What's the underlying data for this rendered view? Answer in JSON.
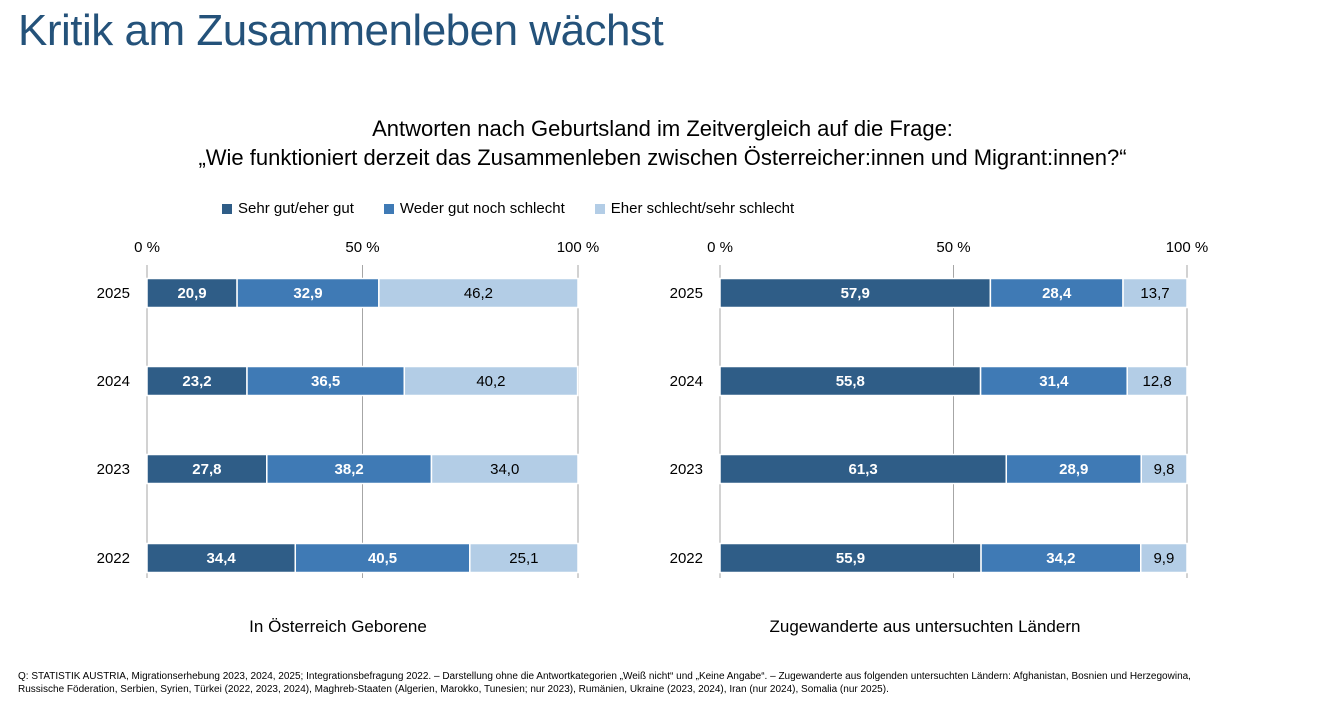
{
  "title": "Kritik am Zusammenleben wächst",
  "subtitle": {
    "line1": "Antworten nach Geburtsland im Zeitvergleich auf die Frage:",
    "line2": "„Wie funktioniert derzeit das Zusammenleben zwischen Österreicher:innen und Migrant:innen?“"
  },
  "legend": [
    {
      "label": "Sehr gut/eher gut",
      "color": "#2f5d87"
    },
    {
      "label": "Weder gut noch schlecht",
      "color": "#3f7ab5"
    },
    {
      "label": "Eher schlecht/sehr schlecht",
      "color": "#b3cde6"
    }
  ],
  "chart_data": [
    {
      "type": "bar",
      "orientation": "horizontal-stacked",
      "title": "In Österreich Geboren",
      "xlabel": "In Österreich Geborene",
      "ylabel": "",
      "xlim": [
        0,
        100
      ],
      "x_ticks": [
        "0 %",
        "50 %",
        "100 %"
      ],
      "grid": true,
      "categories": [
        "2025",
        "2024",
        "2023",
        "2022"
      ],
      "series": [
        {
          "name": "Sehr gut/eher gut",
          "values": [
            20.9,
            23.2,
            27.8,
            34.4
          ],
          "labels": [
            "20,9",
            "23,2",
            "27,8",
            "34,4"
          ]
        },
        {
          "name": "Weder gut noch schlecht",
          "values": [
            32.9,
            36.5,
            38.2,
            40.5
          ],
          "labels": [
            "32,9",
            "36,5",
            "38,2",
            "40,5"
          ]
        },
        {
          "name": "Eher schlecht/sehr schlecht",
          "values": [
            46.2,
            40.2,
            34.0,
            25.1
          ],
          "labels": [
            "46,2",
            "40,2",
            "34,0",
            "25,1"
          ]
        }
      ],
      "legend": "top"
    },
    {
      "type": "bar",
      "orientation": "horizontal-stacked",
      "title": "Zugewanderte aus untersuchten Ländern",
      "xlabel": "Zugewanderte aus untersuchten Ländern",
      "ylabel": "",
      "xlim": [
        0,
        100
      ],
      "x_ticks": [
        "0 %",
        "50 %",
        "100 %"
      ],
      "grid": true,
      "categories": [
        "2025",
        "2024",
        "2023",
        "2022"
      ],
      "series": [
        {
          "name": "Sehr gut/eher gut",
          "values": [
            57.9,
            55.8,
            61.3,
            55.9
          ],
          "labels": [
            "57,9",
            "55,8",
            "61,3",
            "55,9"
          ]
        },
        {
          "name": "Weder gut noch schlecht",
          "values": [
            28.4,
            31.4,
            28.9,
            34.2
          ],
          "labels": [
            "28,4",
            "31,4",
            "28,9",
            "34,2"
          ]
        },
        {
          "name": "Eher schlecht/sehr schlecht",
          "values": [
            13.7,
            12.8,
            9.8,
            9.9
          ],
          "labels": [
            "13,7",
            "12,8",
            "9,8",
            "9,9"
          ]
        }
      ],
      "legend": "top"
    }
  ],
  "label_colors": [
    "#ffffff",
    "#ffffff",
    "#000000"
  ],
  "grid_color": "#a6a6a6",
  "note": {
    "line1": "Q: STATISTIK AUSTRIA, Migrationserhebung 2023, 2024, 2025; Integrationsbefragung 2022. – Darstellung ohne die Antwortkategorien „Weiß nicht“ und „Keine Angabe“. – Zugewanderte aus folgenden untersuchten Ländern: Afghanistan, Bosnien und Herzegowina,",
    "line2": "Russische Föderation, Serbien, Syrien, Türkei (2022, 2023, 2024), Maghreb-Staaten (Algerien, Marokko, Tunesien; nur 2023), Rumänien, Ukraine (2023, 2024), Iran (nur 2024), Somalia (nur 2025)."
  }
}
